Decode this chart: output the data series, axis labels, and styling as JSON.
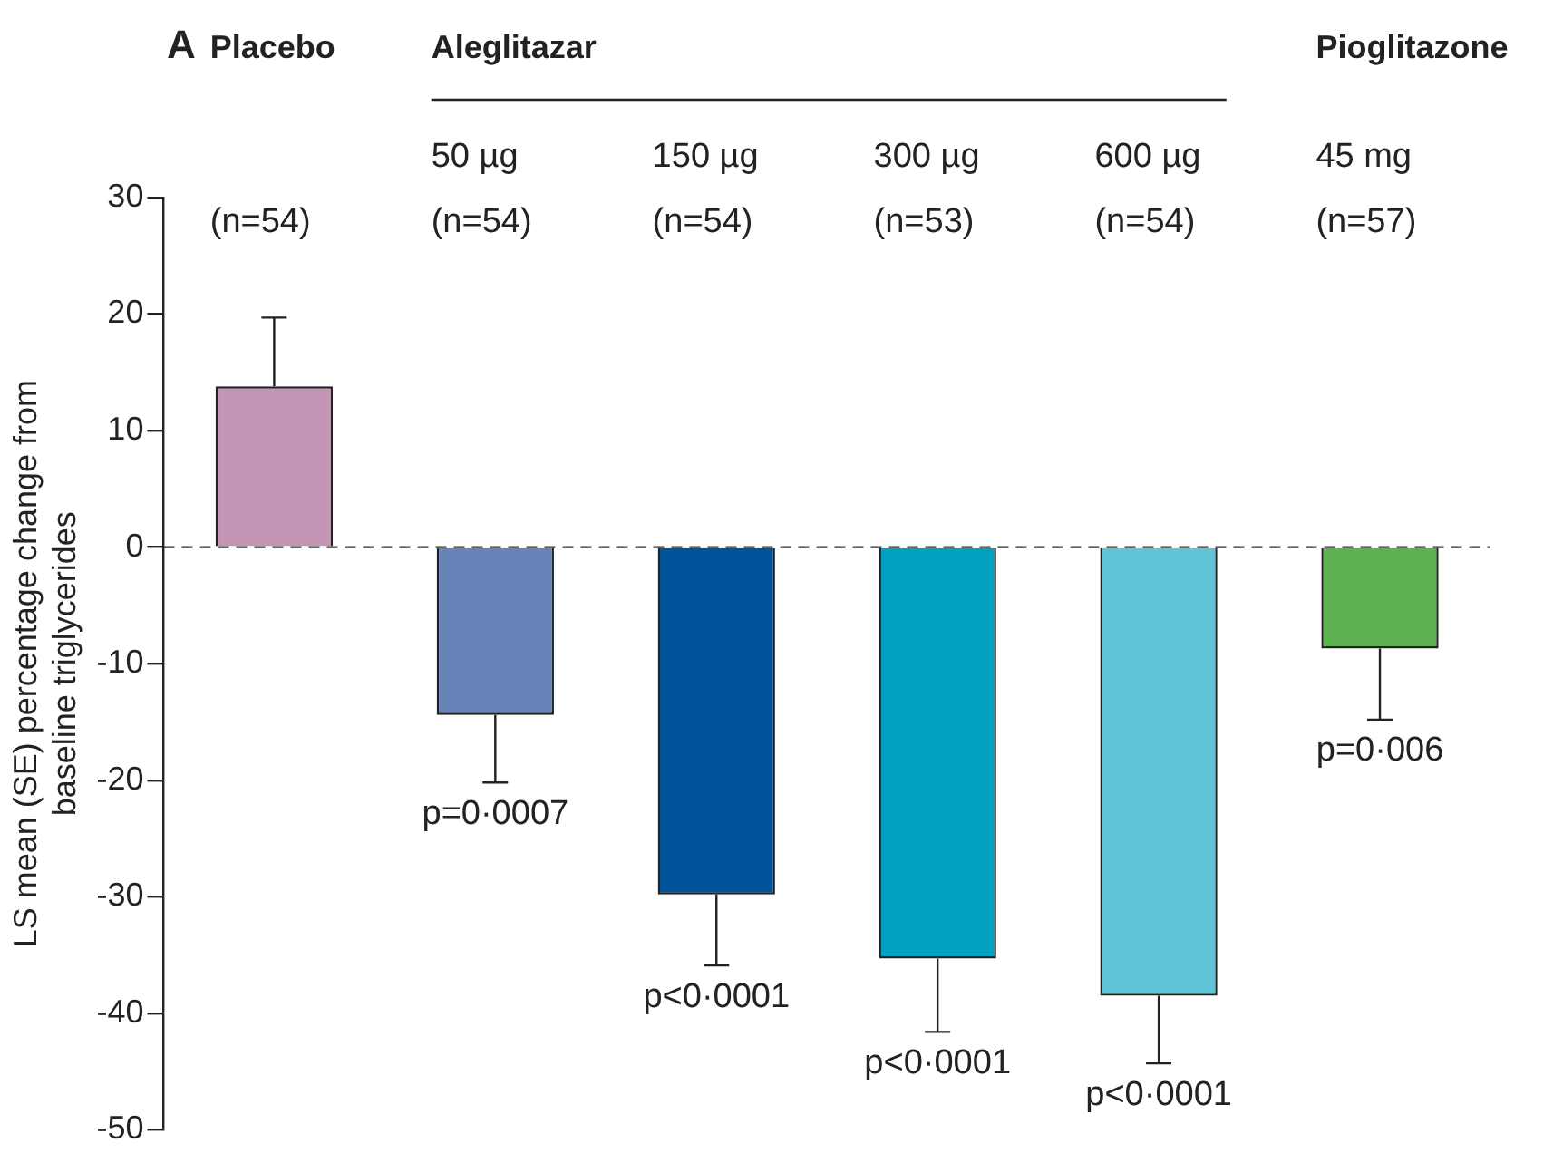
{
  "chart_data": {
    "type": "bar",
    "title": "A",
    "ylabel": "LS mean (SE) percentage change from\nbaseline triglycerides",
    "categories": [
      "(n=54)",
      "50 µg\n(n=54)",
      "150 µg\n(n=54)",
      "300 µg\n(n=53)",
      "600 µg\n(n=54)",
      "45 mg\n(n=57)"
    ],
    "values": [
      13.8,
      -14.4,
      -29.8,
      -35.3,
      -38.5,
      -8.7
    ],
    "errors": [
      [
        13.8,
        19.7
      ],
      [
        -20.2,
        -14.4
      ],
      [
        -35.9,
        -29.8
      ],
      [
        -41.6,
        -35.3
      ],
      [
        -44.3,
        -38.5
      ],
      [
        -14.8,
        -8.7
      ]
    ],
    "colors": [
      "#c495b5",
      "#6883b8",
      "#00549a",
      "#00a2bf",
      "#5ec4d6",
      "#5db150"
    ],
    "ylim": [
      -50,
      30
    ],
    "yticks": [
      -50,
      -40,
      -30,
      -20,
      -10,
      0,
      10,
      20,
      30
    ],
    "grid": false,
    "legend": false,
    "ref_lines": [
      {
        "axis": "y",
        "value": 0,
        "line_style": "dashed",
        "color": "#333333"
      }
    ],
    "annotations": [
      "Placebo",
      "Aleglitazar",
      "Pioglitazone",
      {
        "text": "p=0·0007",
        "x": "50 µg\n(n=54)",
        "y": -14.4
      },
      {
        "text": "p<0·0001",
        "x": "150 µg\n(n=54)",
        "y": -29.8
      },
      {
        "text": "p<0·0001",
        "x": "300 µg\n(n=53)",
        "y": -35.3
      },
      {
        "text": "p<0·0001",
        "x": "600 µg\n(n=54)",
        "y": -38.5
      },
      {
        "text": "p=0·006",
        "x": "45 mg\n(n=57)",
        "y": -8.7
      }
    ]
  }
}
